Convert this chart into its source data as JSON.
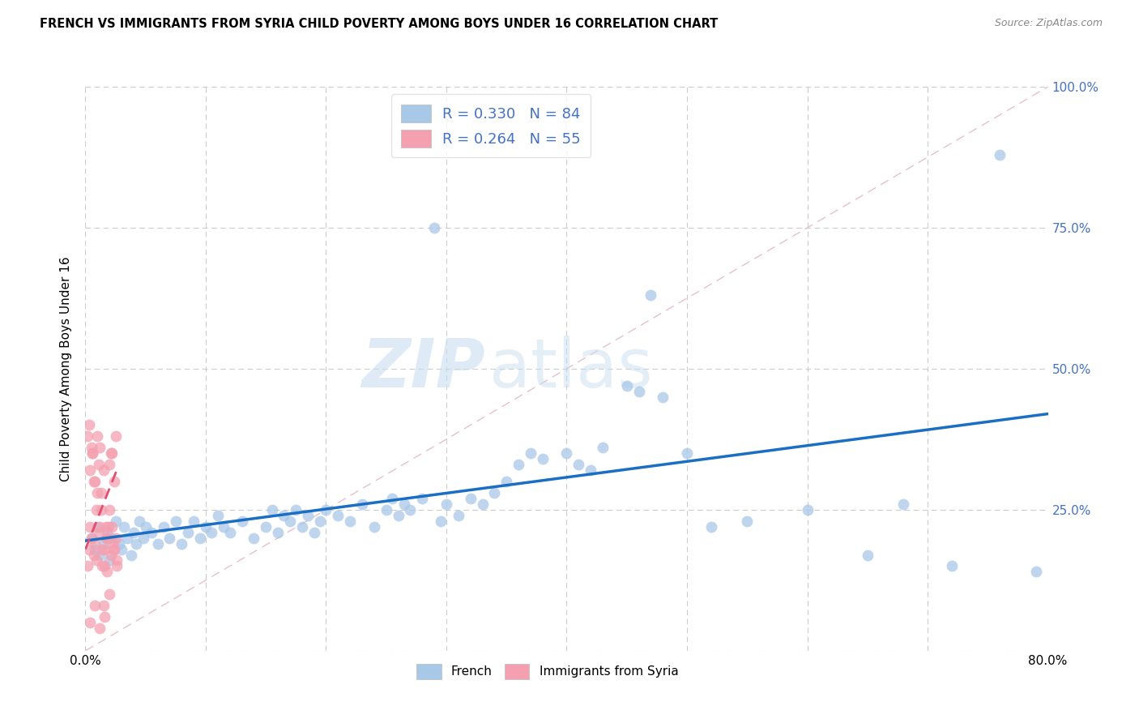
{
  "title": "FRENCH VS IMMIGRANTS FROM SYRIA CHILD POVERTY AMONG BOYS UNDER 16 CORRELATION CHART",
  "source": "Source: ZipAtlas.com",
  "ylabel": "Child Poverty Among Boys Under 16",
  "R_french": 0.33,
  "N_french": 84,
  "R_syria": 0.264,
  "N_syria": 55,
  "xmin": 0.0,
  "xmax": 0.8,
  "ymin": 0.0,
  "ymax": 1.0,
  "yticks": [
    0.0,
    0.25,
    0.5,
    0.75,
    1.0
  ],
  "ytick_labels_right": [
    "",
    "25.0%",
    "50.0%",
    "75.0%",
    "100.0%"
  ],
  "xticks": [
    0.0,
    0.1,
    0.2,
    0.3,
    0.4,
    0.5,
    0.6,
    0.7,
    0.8
  ],
  "xtick_labels": [
    "0.0%",
    "",
    "",
    "",
    "",
    "",
    "",
    "",
    "80.0%"
  ],
  "color_french": "#a8c8e8",
  "color_french_line": "#1a6fc4",
  "color_syria": "#f4a0b0",
  "color_syria_line": "#e05070",
  "color_diag": "#e8c0c8",
  "color_grid": "#cccccc",
  "watermark_zip": "ZIP",
  "watermark_atlas": "atlas",
  "legend_label_french": "French",
  "legend_label_syria": "Immigrants from Syria",
  "french_x": [
    0.005,
    0.008,
    0.01,
    0.012,
    0.015,
    0.018,
    0.02,
    0.022,
    0.025,
    0.028,
    0.03,
    0.032,
    0.035,
    0.038,
    0.04,
    0.042,
    0.045,
    0.048,
    0.05,
    0.055,
    0.06,
    0.065,
    0.07,
    0.075,
    0.08,
    0.085,
    0.09,
    0.095,
    0.1,
    0.105,
    0.11,
    0.115,
    0.12,
    0.13,
    0.14,
    0.15,
    0.155,
    0.16,
    0.165,
    0.17,
    0.175,
    0.18,
    0.185,
    0.19,
    0.195,
    0.2,
    0.21,
    0.22,
    0.23,
    0.24,
    0.25,
    0.255,
    0.26,
    0.265,
    0.27,
    0.28,
    0.29,
    0.295,
    0.3,
    0.31,
    0.32,
    0.33,
    0.34,
    0.35,
    0.36,
    0.37,
    0.38,
    0.4,
    0.41,
    0.42,
    0.43,
    0.45,
    0.46,
    0.47,
    0.48,
    0.5,
    0.52,
    0.55,
    0.6,
    0.65,
    0.68,
    0.72,
    0.76,
    0.79
  ],
  "french_y": [
    0.2,
    0.18,
    0.22,
    0.17,
    0.19,
    0.21,
    0.16,
    0.2,
    0.23,
    0.19,
    0.18,
    0.22,
    0.2,
    0.17,
    0.21,
    0.19,
    0.23,
    0.2,
    0.22,
    0.21,
    0.19,
    0.22,
    0.2,
    0.23,
    0.19,
    0.21,
    0.23,
    0.2,
    0.22,
    0.21,
    0.24,
    0.22,
    0.21,
    0.23,
    0.2,
    0.22,
    0.25,
    0.21,
    0.24,
    0.23,
    0.25,
    0.22,
    0.24,
    0.21,
    0.23,
    0.25,
    0.24,
    0.23,
    0.26,
    0.22,
    0.25,
    0.27,
    0.24,
    0.26,
    0.25,
    0.27,
    0.75,
    0.23,
    0.26,
    0.24,
    0.27,
    0.26,
    0.28,
    0.3,
    0.33,
    0.35,
    0.34,
    0.35,
    0.33,
    0.32,
    0.36,
    0.47,
    0.46,
    0.63,
    0.45,
    0.35,
    0.22,
    0.23,
    0.25,
    0.17,
    0.26,
    0.15,
    0.88,
    0.14
  ],
  "syria_x": [
    0.002,
    0.003,
    0.004,
    0.005,
    0.006,
    0.007,
    0.008,
    0.009,
    0.01,
    0.011,
    0.012,
    0.013,
    0.014,
    0.015,
    0.016,
    0.017,
    0.018,
    0.019,
    0.02,
    0.021,
    0.022,
    0.023,
    0.024,
    0.025,
    0.026,
    0.003,
    0.005,
    0.007,
    0.009,
    0.011,
    0.013,
    0.015,
    0.017,
    0.019,
    0.021,
    0.023,
    0.025,
    0.002,
    0.004,
    0.006,
    0.008,
    0.01,
    0.012,
    0.014,
    0.016,
    0.018,
    0.02,
    0.022,
    0.024,
    0.026,
    0.004,
    0.008,
    0.012,
    0.016,
    0.02
  ],
  "syria_y": [
    0.15,
    0.18,
    0.22,
    0.2,
    0.35,
    0.17,
    0.19,
    0.16,
    0.38,
    0.21,
    0.36,
    0.25,
    0.15,
    0.08,
    0.18,
    0.22,
    0.14,
    0.2,
    0.33,
    0.17,
    0.35,
    0.19,
    0.3,
    0.38,
    0.16,
    0.4,
    0.36,
    0.3,
    0.25,
    0.33,
    0.28,
    0.32,
    0.2,
    0.22,
    0.35,
    0.18,
    0.2,
    0.38,
    0.32,
    0.35,
    0.3,
    0.28,
    0.22,
    0.18,
    0.15,
    0.2,
    0.25,
    0.22,
    0.18,
    0.15,
    0.05,
    0.08,
    0.04,
    0.06,
    0.1
  ],
  "trend_french_x0": 0.0,
  "trend_french_y0": 0.195,
  "trend_french_x1": 0.8,
  "trend_french_y1": 0.42,
  "trend_syria_x0": 0.0,
  "trend_syria_y0": 0.18,
  "trend_syria_x1": 0.026,
  "trend_syria_y1": 0.32
}
